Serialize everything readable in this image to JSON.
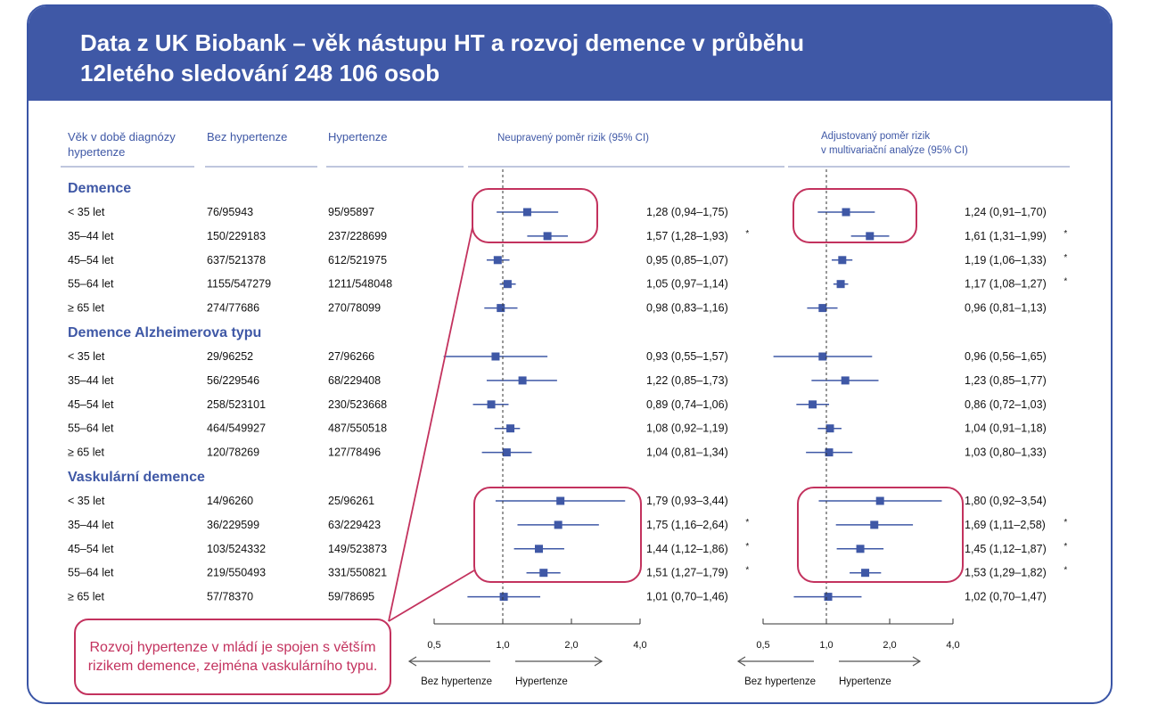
{
  "header": {
    "line1": "Data z UK Biobank – věk nástupu HT a rozvoj demence v průběhu",
    "line2": "12letého sledování 248 106 osob"
  },
  "colors": {
    "header_bg": "#3f58a6",
    "marker": "#3f58a6",
    "highlight": "#c3325e",
    "text": "#111111"
  },
  "chart_data": {
    "type": "table",
    "columns": {
      "age": "Věk v době diagnózy hypertenze",
      "no_ht": "Bez hypertenze",
      "ht": "Hypertenze",
      "unadj": "Neupravený poměr rizik (95% CI)",
      "adj": "Adjustovaný poměr rizik v multivariační analýze (95% CI)"
    },
    "x_scale": "log",
    "x_ticks": [
      "0,5",
      "1,0",
      "2,0",
      "4,0"
    ],
    "x_tick_values": [
      0.5,
      1.0,
      2.0,
      4.0
    ],
    "direction_labels": [
      "Bez hypertenze",
      "Hypertenze"
    ],
    "sections": [
      {
        "title": "Demence",
        "rows": [
          {
            "age": "< 35 let",
            "no_ht": "76/95943",
            "ht": "95/95897",
            "unadj": {
              "hr": 1.28,
              "lo": 0.94,
              "hi": 1.75,
              "text": "1,28 (0,94–1,75)",
              "sig": ""
            },
            "adj": {
              "hr": 1.24,
              "lo": 0.91,
              "hi": 1.7,
              "text": "1,24 (0,91–1,70)",
              "sig": ""
            }
          },
          {
            "age": "35–44 let",
            "no_ht": "150/229183",
            "ht": "237/228699",
            "unadj": {
              "hr": 1.57,
              "lo": 1.28,
              "hi": 1.93,
              "text": "1,57 (1,28–1,93)",
              "sig": "*"
            },
            "adj": {
              "hr": 1.61,
              "lo": 1.31,
              "hi": 1.99,
              "text": "1,61 (1,31–1,99)",
              "sig": "*"
            }
          },
          {
            "age": "45–54 let",
            "no_ht": "637/521378",
            "ht": "612/521975",
            "unadj": {
              "hr": 0.95,
              "lo": 0.85,
              "hi": 1.07,
              "text": "0,95 (0,85–1,07)",
              "sig": ""
            },
            "adj": {
              "hr": 1.19,
              "lo": 1.06,
              "hi": 1.33,
              "text": "1,19 (1,06–1,33)",
              "sig": "*"
            }
          },
          {
            "age": "55–64 let",
            "no_ht": "1155/547279",
            "ht": "1211/548048",
            "unadj": {
              "hr": 1.05,
              "lo": 0.97,
              "hi": 1.14,
              "text": "1,05 (0,97–1,14)",
              "sig": ""
            },
            "adj": {
              "hr": 1.17,
              "lo": 1.08,
              "hi": 1.27,
              "text": "1,17 (1,08–1,27)",
              "sig": "*"
            }
          },
          {
            "age": "≥ 65 let",
            "no_ht": "274/77686",
            "ht": "270/78099",
            "unadj": {
              "hr": 0.98,
              "lo": 0.83,
              "hi": 1.16,
              "text": "0,98 (0,83–1,16)",
              "sig": ""
            },
            "adj": {
              "hr": 0.96,
              "lo": 0.81,
              "hi": 1.13,
              "text": "0,96 (0,81–1,13)",
              "sig": ""
            }
          }
        ]
      },
      {
        "title": "Demence Alzheimerova typu",
        "rows": [
          {
            "age": "< 35 let",
            "no_ht": "29/96252",
            "ht": "27/96266",
            "unadj": {
              "hr": 0.93,
              "lo": 0.55,
              "hi": 1.57,
              "text": "0,93 (0,55–1,57)",
              "sig": ""
            },
            "adj": {
              "hr": 0.96,
              "lo": 0.56,
              "hi": 1.65,
              "text": "0,96 (0,56–1,65)",
              "sig": ""
            }
          },
          {
            "age": "35–44 let",
            "no_ht": "56/229546",
            "ht": "68/229408",
            "unadj": {
              "hr": 1.22,
              "lo": 0.85,
              "hi": 1.73,
              "text": "1,22 (0,85–1,73)",
              "sig": ""
            },
            "adj": {
              "hr": 1.23,
              "lo": 0.85,
              "hi": 1.77,
              "text": "1,23 (0,85–1,77)",
              "sig": ""
            }
          },
          {
            "age": "45–54 let",
            "no_ht": "258/523101",
            "ht": "230/523668",
            "unadj": {
              "hr": 0.89,
              "lo": 0.74,
              "hi": 1.06,
              "text": "0,89 (0,74–1,06)",
              "sig": ""
            },
            "adj": {
              "hr": 0.86,
              "lo": 0.72,
              "hi": 1.03,
              "text": "0,86 (0,72–1,03)",
              "sig": ""
            }
          },
          {
            "age": "55–64 let",
            "no_ht": "464/549927",
            "ht": "487/550518",
            "unadj": {
              "hr": 1.08,
              "lo": 0.92,
              "hi": 1.19,
              "text": "1,08 (0,92–1,19)",
              "sig": ""
            },
            "adj": {
              "hr": 1.04,
              "lo": 0.91,
              "hi": 1.18,
              "text": "1,04 (0,91–1,18)",
              "sig": ""
            }
          },
          {
            "age": "≥ 65 let",
            "no_ht": "120/78269",
            "ht": "127/78496",
            "unadj": {
              "hr": 1.04,
              "lo": 0.81,
              "hi": 1.34,
              "text": "1,04 (0,81–1,34)",
              "sig": ""
            },
            "adj": {
              "hr": 1.03,
              "lo": 0.8,
              "hi": 1.33,
              "text": "1,03 (0,80–1,33)",
              "sig": ""
            }
          }
        ]
      },
      {
        "title": "Vaskulární demence",
        "rows": [
          {
            "age": "< 35 let",
            "no_ht": "14/96260",
            "ht": "25/96261",
            "unadj": {
              "hr": 1.79,
              "lo": 0.93,
              "hi": 3.44,
              "text": "1,79 (0,93–3,44)",
              "sig": ""
            },
            "adj": {
              "hr": 1.8,
              "lo": 0.92,
              "hi": 3.54,
              "text": "1,80 (0,92–3,54)",
              "sig": ""
            }
          },
          {
            "age": "35–44 let",
            "no_ht": "36/229599",
            "ht": "63/229423",
            "unadj": {
              "hr": 1.75,
              "lo": 1.16,
              "hi": 2.64,
              "text": "1,75 (1,16–2,64)",
              "sig": "*"
            },
            "adj": {
              "hr": 1.69,
              "lo": 1.11,
              "hi": 2.58,
              "text": "1,69 (1,11–2,58)",
              "sig": "*"
            }
          },
          {
            "age": "45–54 let",
            "no_ht": "103/524332",
            "ht": "149/523873",
            "unadj": {
              "hr": 1.44,
              "lo": 1.12,
              "hi": 1.86,
              "text": "1,44 (1,12–1,86)",
              "sig": "*"
            },
            "adj": {
              "hr": 1.45,
              "lo": 1.12,
              "hi": 1.87,
              "text": "1,45 (1,12–1,87)",
              "sig": "*"
            }
          },
          {
            "age": "55–64 let",
            "no_ht": "219/550493",
            "ht": "331/550821",
            "unadj": {
              "hr": 1.51,
              "lo": 1.27,
              "hi": 1.79,
              "text": "1,51 (1,27–1,79)",
              "sig": "*"
            },
            "adj": {
              "hr": 1.53,
              "lo": 1.29,
              "hi": 1.82,
              "text": "1,53 (1,29–1,82)",
              "sig": "*"
            }
          },
          {
            "age": "≥ 65 let",
            "no_ht": "57/78370",
            "ht": "59/78695",
            "unadj": {
              "hr": 1.01,
              "lo": 0.7,
              "hi": 1.46,
              "text": "1,01 (0,70–1,46)",
              "sig": ""
            },
            "adj": {
              "hr": 1.02,
              "lo": 0.7,
              "hi": 1.47,
              "text": "1,02 (0,70–1,47)",
              "sig": ""
            }
          }
        ]
      }
    ]
  },
  "callout": {
    "text": "Rozvoj hypertenze v mládí je spojen s větším rizikem demence, zejména vaskulárního typu."
  }
}
